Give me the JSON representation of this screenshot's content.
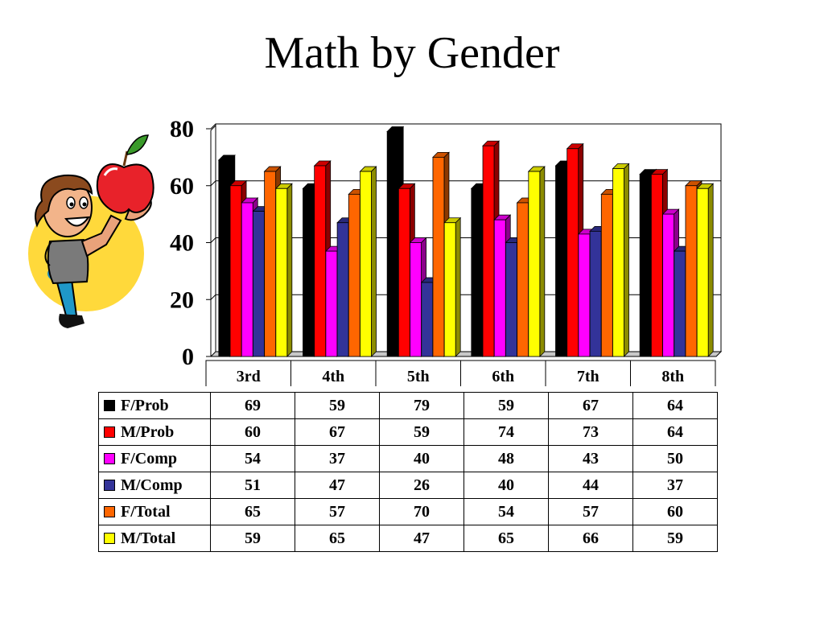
{
  "title": "Math by Gender",
  "clipart": {
    "icon": "student-holding-apple-icon"
  },
  "chart_data": {
    "type": "bar",
    "title": "Math by Gender",
    "categories": [
      "3rd",
      "4th",
      "5th",
      "6th",
      "7th",
      "8th"
    ],
    "ylim": [
      0,
      80
    ],
    "yticks": [
      "0",
      "20",
      "40",
      "60",
      "80"
    ],
    "grid": true,
    "legend": "data table below chart",
    "series": [
      {
        "name": "F/Prob",
        "color": "#000000",
        "values": [
          69,
          59,
          79,
          59,
          67,
          64
        ]
      },
      {
        "name": "M/Prob",
        "color": "#ff0000",
        "values": [
          60,
          67,
          59,
          74,
          73,
          64
        ]
      },
      {
        "name": "F/Comp",
        "color": "#ff00ff",
        "values": [
          54,
          37,
          40,
          48,
          43,
          50
        ]
      },
      {
        "name": "M/Comp",
        "color": "#333399",
        "values": [
          51,
          47,
          26,
          40,
          44,
          37
        ]
      },
      {
        "name": "F/Total",
        "color": "#ff6600",
        "values": [
          65,
          57,
          70,
          54,
          57,
          60
        ]
      },
      {
        "name": "M/Total",
        "color": "#ffff00",
        "values": [
          59,
          65,
          47,
          65,
          66,
          59
        ]
      }
    ]
  }
}
